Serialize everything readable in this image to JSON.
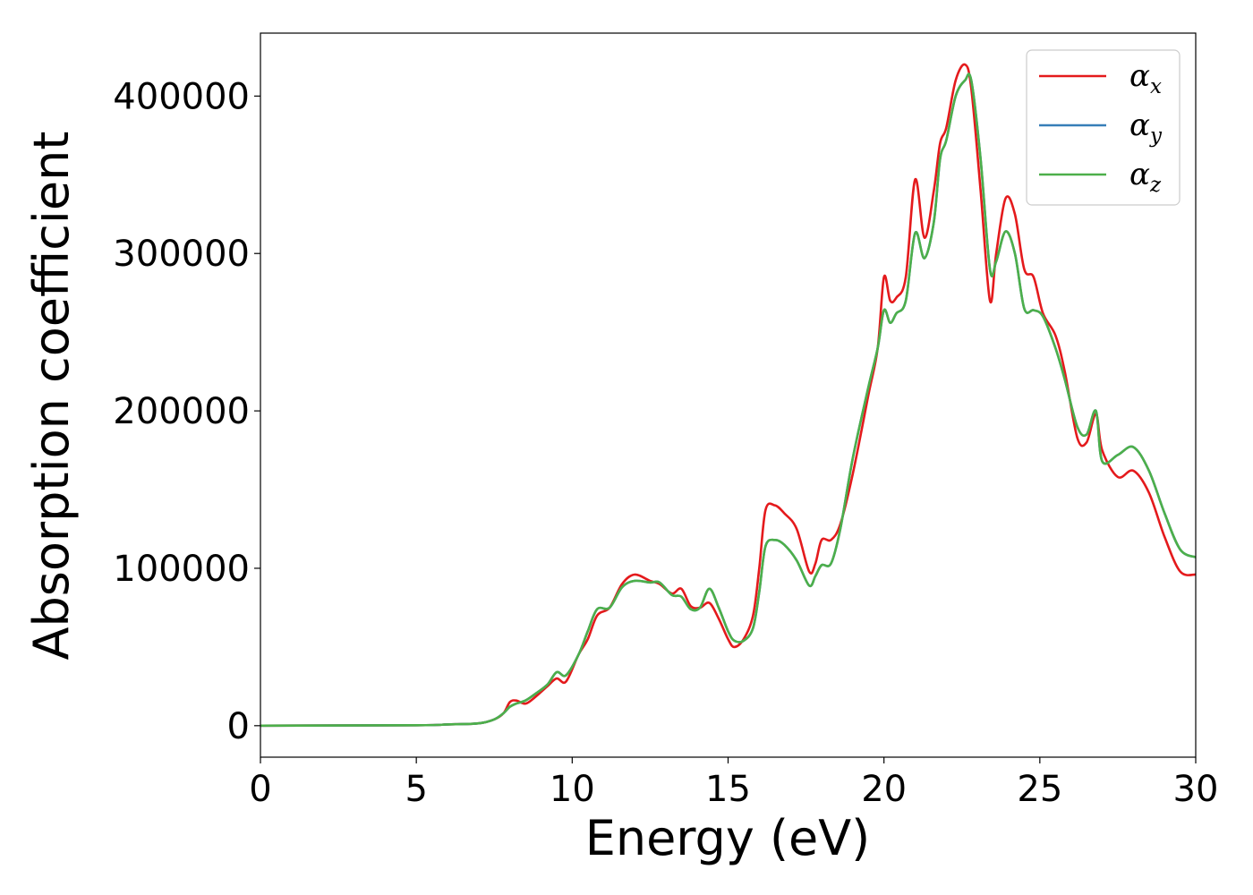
{
  "chart_data": {
    "type": "line",
    "xlabel": "Energy (eV)",
    "ylabel": "Absorption coefficient",
    "xlim": [
      0,
      30
    ],
    "ylim": [
      -20000,
      440000
    ],
    "xticks": [
      0,
      5,
      10,
      15,
      20,
      25,
      30
    ],
    "yticks": [
      0,
      100000,
      200000,
      300000,
      400000
    ],
    "grid": false,
    "legend_position": "top-right",
    "series": [
      {
        "name": "α_x",
        "symbol": "α",
        "subscript": "x",
        "color": "#e41a1c",
        "x": [
          0,
          5,
          6,
          7,
          7.5,
          7.8,
          8.0,
          8.2,
          8.5,
          8.8,
          9.2,
          9.5,
          9.8,
          10.2,
          10.5,
          10.8,
          11.2,
          11.6,
          12.0,
          12.5,
          12.8,
          13.2,
          13.5,
          13.8,
          14.1,
          14.4,
          14.7,
          15.0,
          15.2,
          15.5,
          15.8,
          16.0,
          16.2,
          16.5,
          16.8,
          17.2,
          17.6,
          17.8,
          18.0,
          18.3,
          18.6,
          19.0,
          19.5,
          19.8,
          20.0,
          20.2,
          20.4,
          20.7,
          21.0,
          21.3,
          21.6,
          21.8,
          22.0,
          22.3,
          22.6,
          22.8,
          23.1,
          23.4,
          23.6,
          23.9,
          24.2,
          24.5,
          24.8,
          25.1,
          25.5,
          25.8,
          26.2,
          26.5,
          26.8,
          27.0,
          27.5,
          28.0,
          28.5,
          29.0,
          29.5,
          30.0
        ],
        "y": [
          0,
          300,
          800,
          1500,
          4000,
          8000,
          15000,
          16000,
          14000,
          18000,
          25000,
          30000,
          28000,
          45000,
          55000,
          70000,
          75000,
          90000,
          96000,
          92000,
          90000,
          84000,
          87000,
          76000,
          75000,
          78000,
          68000,
          55000,
          50000,
          55000,
          70000,
          100000,
          137000,
          140000,
          135000,
          125000,
          98000,
          103000,
          118000,
          118000,
          128000,
          160000,
          210000,
          240000,
          285000,
          270000,
          272000,
          285000,
          347000,
          310000,
          340000,
          370000,
          380000,
          410000,
          420000,
          405000,
          340000,
          270000,
          300000,
          335000,
          325000,
          290000,
          285000,
          262000,
          248000,
          225000,
          183000,
          180000,
          198000,
          175000,
          158000,
          162000,
          148000,
          120000,
          98000,
          96000
        ]
      },
      {
        "name": "α_y",
        "symbol": "α",
        "subscript": "y",
        "color": "#377eb8",
        "x": [
          0,
          5,
          6,
          7,
          7.5,
          7.8,
          8.0,
          8.2,
          8.5,
          8.8,
          9.2,
          9.5,
          9.8,
          10.2,
          10.5,
          10.8,
          11.2,
          11.6,
          12.0,
          12.5,
          12.8,
          13.2,
          13.5,
          13.8,
          14.1,
          14.4,
          14.7,
          15.0,
          15.2,
          15.5,
          15.8,
          16.0,
          16.2,
          16.5,
          16.8,
          17.2,
          17.6,
          17.8,
          18.0,
          18.3,
          18.6,
          19.0,
          19.5,
          19.8,
          20.0,
          20.2,
          20.4,
          20.7,
          21.0,
          21.3,
          21.6,
          21.8,
          22.0,
          22.3,
          22.6,
          22.8,
          23.1,
          23.4,
          23.6,
          23.9,
          24.2,
          24.5,
          24.8,
          25.1,
          25.5,
          25.8,
          26.2,
          26.5,
          26.8,
          27.0,
          27.5,
          28.0,
          28.5,
          29.0,
          29.5,
          30.0
        ],
        "y": [
          0,
          300,
          800,
          1500,
          4000,
          8000,
          12000,
          14000,
          16000,
          20000,
          26000,
          34000,
          32000,
          45000,
          60000,
          74000,
          75000,
          88000,
          92000,
          91000,
          91000,
          83000,
          82000,
          74000,
          75000,
          87000,
          75000,
          60000,
          54000,
          54000,
          62000,
          85000,
          114000,
          118000,
          115000,
          105000,
          89000,
          95000,
          102000,
          103000,
          125000,
          170000,
          215000,
          240000,
          264000,
          256000,
          262000,
          270000,
          313000,
          297000,
          320000,
          360000,
          372000,
          400000,
          410000,
          410000,
          360000,
          290000,
          295000,
          314000,
          300000,
          265000,
          264000,
          260000,
          240000,
          220000,
          190000,
          185000,
          200000,
          168000,
          172000,
          177000,
          162000,
          135000,
          112000,
          107000
        ]
      },
      {
        "name": "α_z",
        "symbol": "α",
        "subscript": "z",
        "color": "#4daf4a",
        "x": [
          0,
          5,
          6,
          7,
          7.5,
          7.8,
          8.0,
          8.2,
          8.5,
          8.8,
          9.2,
          9.5,
          9.8,
          10.2,
          10.5,
          10.8,
          11.2,
          11.6,
          12.0,
          12.5,
          12.8,
          13.2,
          13.5,
          13.8,
          14.1,
          14.4,
          14.7,
          15.0,
          15.2,
          15.5,
          15.8,
          16.0,
          16.2,
          16.5,
          16.8,
          17.2,
          17.6,
          17.8,
          18.0,
          18.3,
          18.6,
          19.0,
          19.5,
          19.8,
          20.0,
          20.2,
          20.4,
          20.7,
          21.0,
          21.3,
          21.6,
          21.8,
          22.0,
          22.3,
          22.6,
          22.8,
          23.1,
          23.4,
          23.6,
          23.9,
          24.2,
          24.5,
          24.8,
          25.1,
          25.5,
          25.8,
          26.2,
          26.5,
          26.8,
          27.0,
          27.5,
          28.0,
          28.5,
          29.0,
          29.5,
          30.0
        ],
        "y": [
          0,
          300,
          800,
          1500,
          4000,
          8000,
          12000,
          14000,
          16000,
          20000,
          26000,
          34000,
          32000,
          45000,
          60000,
          74000,
          75000,
          88000,
          92000,
          91000,
          91000,
          83000,
          82000,
          74000,
          75000,
          87000,
          75000,
          60000,
          54000,
          54000,
          62000,
          85000,
          114000,
          118000,
          115000,
          105000,
          89000,
          95000,
          102000,
          103000,
          125000,
          170000,
          215000,
          240000,
          264000,
          256000,
          262000,
          270000,
          313000,
          297000,
          320000,
          360000,
          372000,
          400000,
          410000,
          410000,
          360000,
          290000,
          295000,
          314000,
          300000,
          265000,
          264000,
          260000,
          240000,
          220000,
          190000,
          185000,
          200000,
          168000,
          172000,
          177000,
          162000,
          135000,
          112000,
          107000
        ]
      }
    ]
  }
}
